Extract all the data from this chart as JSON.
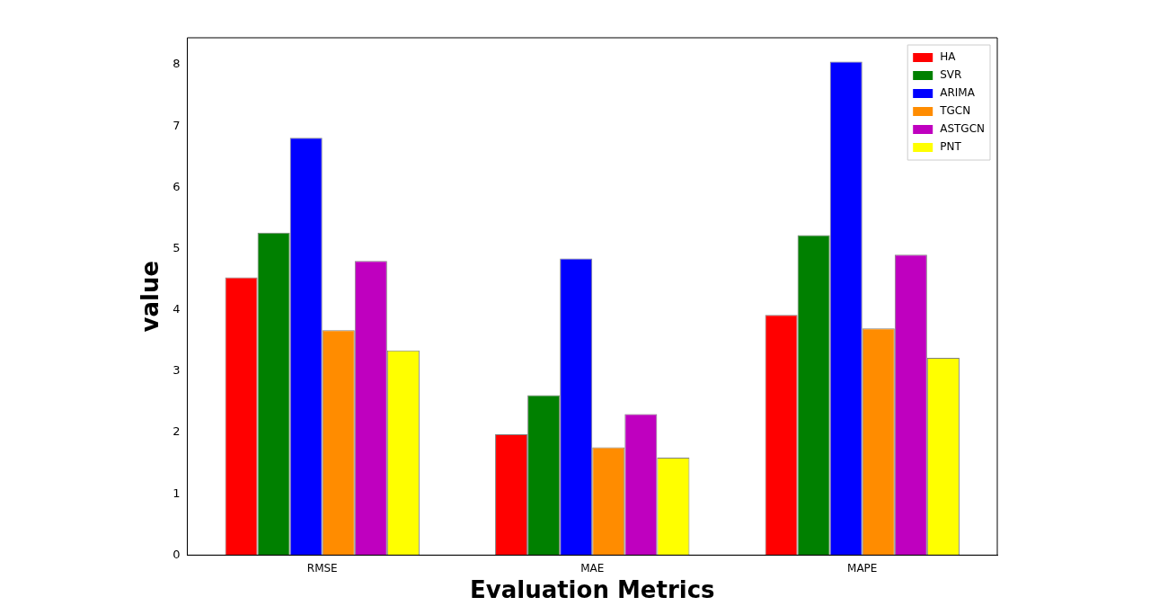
{
  "chart_data": {
    "type": "bar",
    "xlabel": "Evaluation Metrics",
    "ylabel": "value",
    "categories": [
      "RMSE",
      "MAE",
      "MAPE"
    ],
    "series": [
      {
        "name": "HA",
        "color": "#ff0000",
        "values": [
          4.53,
          1.97,
          3.92
        ]
      },
      {
        "name": "SVR",
        "color": "#008000",
        "values": [
          5.26,
          2.61,
          5.22
        ]
      },
      {
        "name": "ARIMA",
        "color": "#0000ff",
        "values": [
          6.81,
          4.84,
          8.05
        ]
      },
      {
        "name": "TGCN",
        "color": "#ff8c00",
        "values": [
          3.67,
          1.76,
          3.7
        ]
      },
      {
        "name": "ASTGCN",
        "color": "#bf00bf",
        "values": [
          4.8,
          2.3,
          4.9
        ]
      },
      {
        "name": "PNT",
        "color": "#ffff00",
        "values": [
          3.34,
          1.59,
          3.22
        ]
      }
    ],
    "ylim": [
      0,
      8.44
    ],
    "yticks": [
      0,
      1,
      2,
      3,
      4,
      5,
      6,
      7,
      8
    ],
    "grid": false,
    "legend": "top right"
  }
}
